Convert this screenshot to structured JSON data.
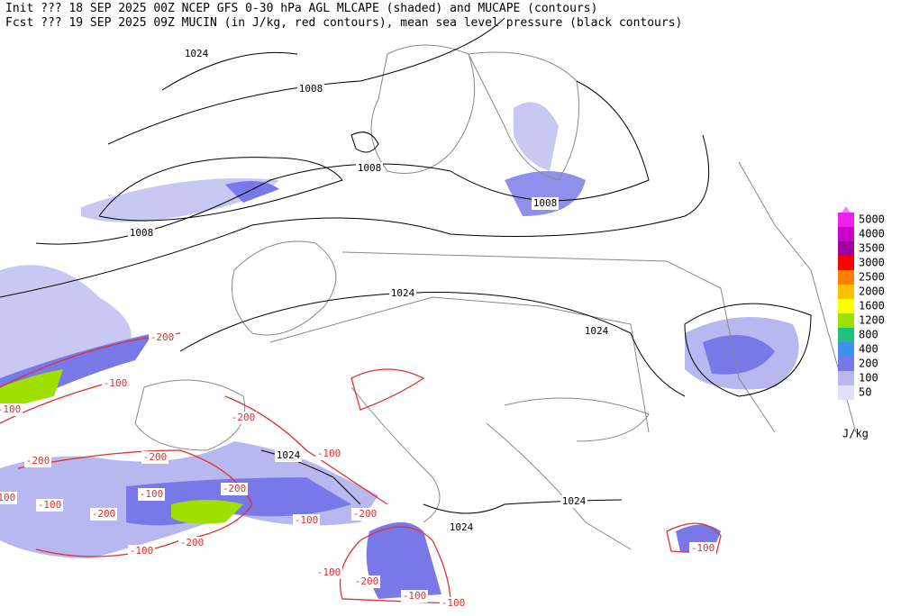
{
  "header": {
    "line1": "Init  ??? 18 SEP 2025 00Z  NCEP GFS 0-30 hPa AGL MLCAPE (shaded) and MUCAPE (contours)",
    "line2": "Fcst ??? 19 SEP 2025 09Z  MUCIN (in J/kg, red contours), mean sea level pressure (black contours)"
  },
  "legend": {
    "unit": "J/kg",
    "top_color": "#ee88ee",
    "levels": [
      {
        "label": "5000",
        "color": "#ee22ee"
      },
      {
        "label": "4000",
        "color": "#cc00cc"
      },
      {
        "label": "3500",
        "color": "#a000a0"
      },
      {
        "label": "3000",
        "color": "#ff0000"
      },
      {
        "label": "2500",
        "color": "#ff8000"
      },
      {
        "label": "2000",
        "color": "#ffc000"
      },
      {
        "label": "1600",
        "color": "#ffff00"
      },
      {
        "label": "1200",
        "color": "#a0e000"
      },
      {
        "label": "800",
        "color": "#20c080"
      },
      {
        "label": "400",
        "color": "#4090f0"
      },
      {
        "label": "200",
        "color": "#7878e8"
      },
      {
        "label": "100",
        "color": "#b8b8f0"
      },
      {
        "label": "50",
        "color": "#e0e0f8"
      }
    ]
  },
  "pressure_labels": [
    "1024",
    "1008",
    "1008",
    "1008",
    "1008",
    "1024",
    "1024",
    "1024",
    "1024",
    "1024"
  ],
  "cin_labels": [
    "-200",
    "-100",
    "-100",
    "-200",
    "-200",
    "-200",
    "-200",
    "-100",
    "-100",
    "-100",
    "-200",
    "-200",
    "-100",
    "-100",
    "-200",
    "-100",
    "-200",
    "-100",
    "-100",
    "-100",
    "-100"
  ]
}
